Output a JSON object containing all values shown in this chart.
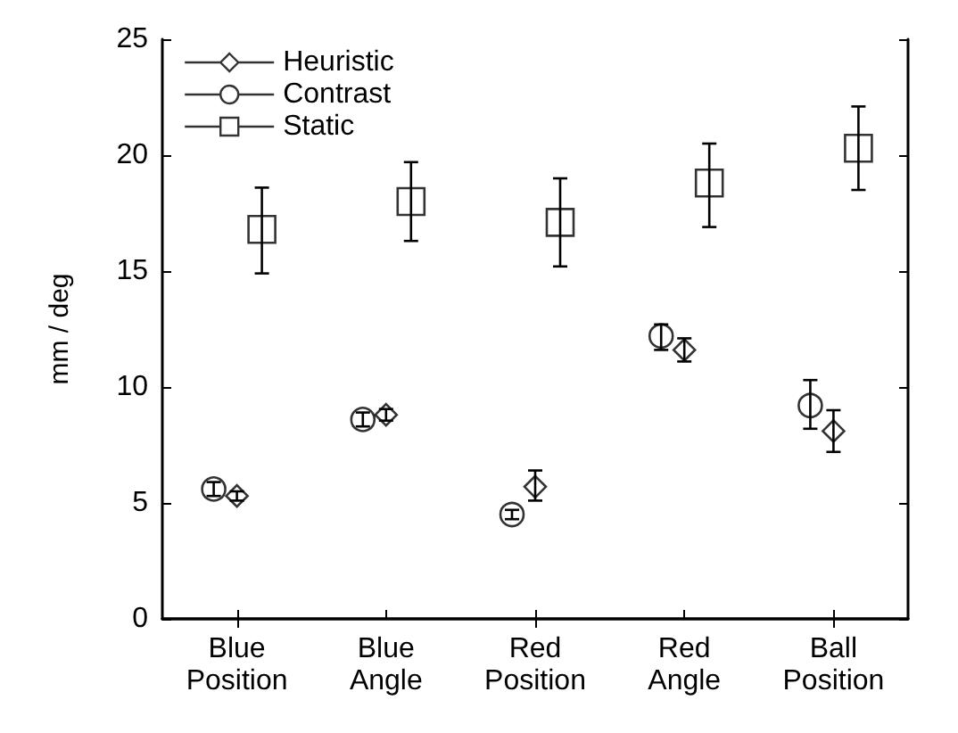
{
  "chart_data": {
    "type": "scatter",
    "ylabel": "mm / deg",
    "categories": [
      "Blue Position",
      "Blue Angle",
      "Red Position",
      "Red Angle",
      "Ball Position"
    ],
    "series": [
      {
        "name": "Heuristic",
        "color": "#000000",
        "marker": "diamond",
        "values": [
          5.3,
          8.8,
          5.7,
          11.6,
          8.1
        ],
        "errors": [
          0.2,
          0.25,
          [
            5.1,
            6.4
          ],
          [
            11.1,
            12.1
          ],
          [
            7.2,
            9.0
          ]
        ]
      },
      {
        "name": "Contrast",
        "color": "#000000",
        "marker": "circle",
        "values": [
          5.6,
          8.6,
          4.5,
          12.2,
          9.2
        ],
        "errors": [
          0.3,
          0.3,
          0.2,
          [
            11.6,
            12.7
          ],
          [
            8.2,
            10.3
          ]
        ]
      },
      {
        "name": "Static",
        "color": "#000000",
        "marker": "square",
        "values": [
          16.8,
          18.0,
          17.1,
          18.8,
          20.3
        ],
        "errors": [
          [
            14.9,
            18.6
          ],
          [
            16.3,
            19.7
          ],
          [
            15.2,
            19.0
          ],
          [
            16.9,
            20.5
          ],
          [
            18.5,
            22.1
          ]
        ]
      }
    ],
    "ylim": [
      0,
      25
    ],
    "yticks": [
      0,
      5,
      10,
      15,
      20,
      25
    ],
    "grid": false,
    "legend": "top left"
  }
}
